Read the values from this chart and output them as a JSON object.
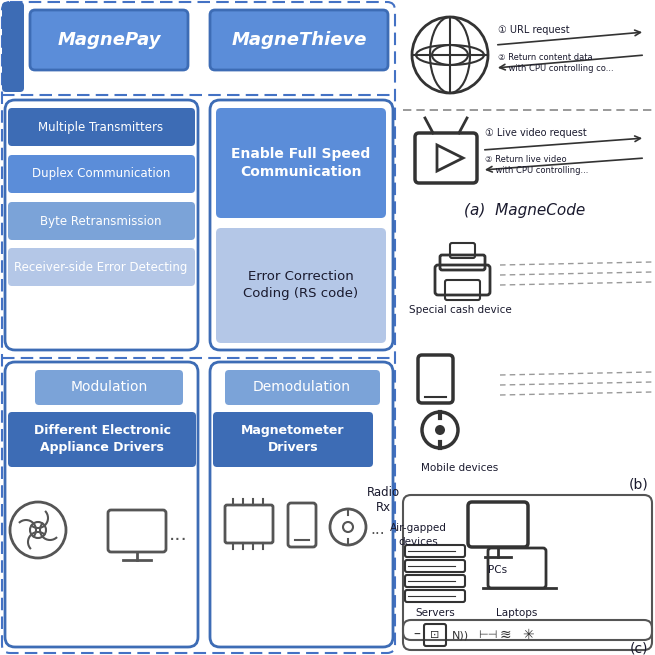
{
  "bg_color": "#ffffff",
  "blue_dark": "#3D6CB5",
  "blue_mid": "#5B8DD9",
  "blue_light": "#7BA3D8",
  "blue_lighter": "#B4C7E7",
  "blue_lightest": "#D6E4F7",
  "outline_color": "#2E5FAC",
  "text_white": "#ffffff",
  "text_dark": "#1a1a2e",
  "dash_color": "#4472C4",
  "gray_icon": "#555555",
  "gray_dark": "#333333",
  "magnepay_label": "MagnePay",
  "magnethieve_label": "MagneThieve",
  "features_left": [
    "Multiple Transmitters",
    "Duplex Communication",
    "Byte Retransmission",
    "Receiver-side Error Detecting"
  ],
  "feat_colors_dark": [
    true,
    true,
    false,
    false
  ],
  "modulation_label": "Modulation",
  "demodulation_label": "Demodulation",
  "drivers_label": "Different Electronic\nAppliance Drivers",
  "mag_drivers_label": "Magnetometer\nDrivers",
  "radio_label": "Radio\nRx",
  "url_request": "① URL request",
  "return_content": "② Return content data\n    with CPU controlling co...",
  "live_video": "① Live video request",
  "return_live": "② Return live video\n    with CPU controlling...",
  "special_cash": "Special cash device",
  "mobile_devices": "Mobile devices",
  "air_gapped": "Air-gapped\ndevices",
  "pcs": "PCs",
  "servers": "Servers",
  "laptops": "Laptops"
}
